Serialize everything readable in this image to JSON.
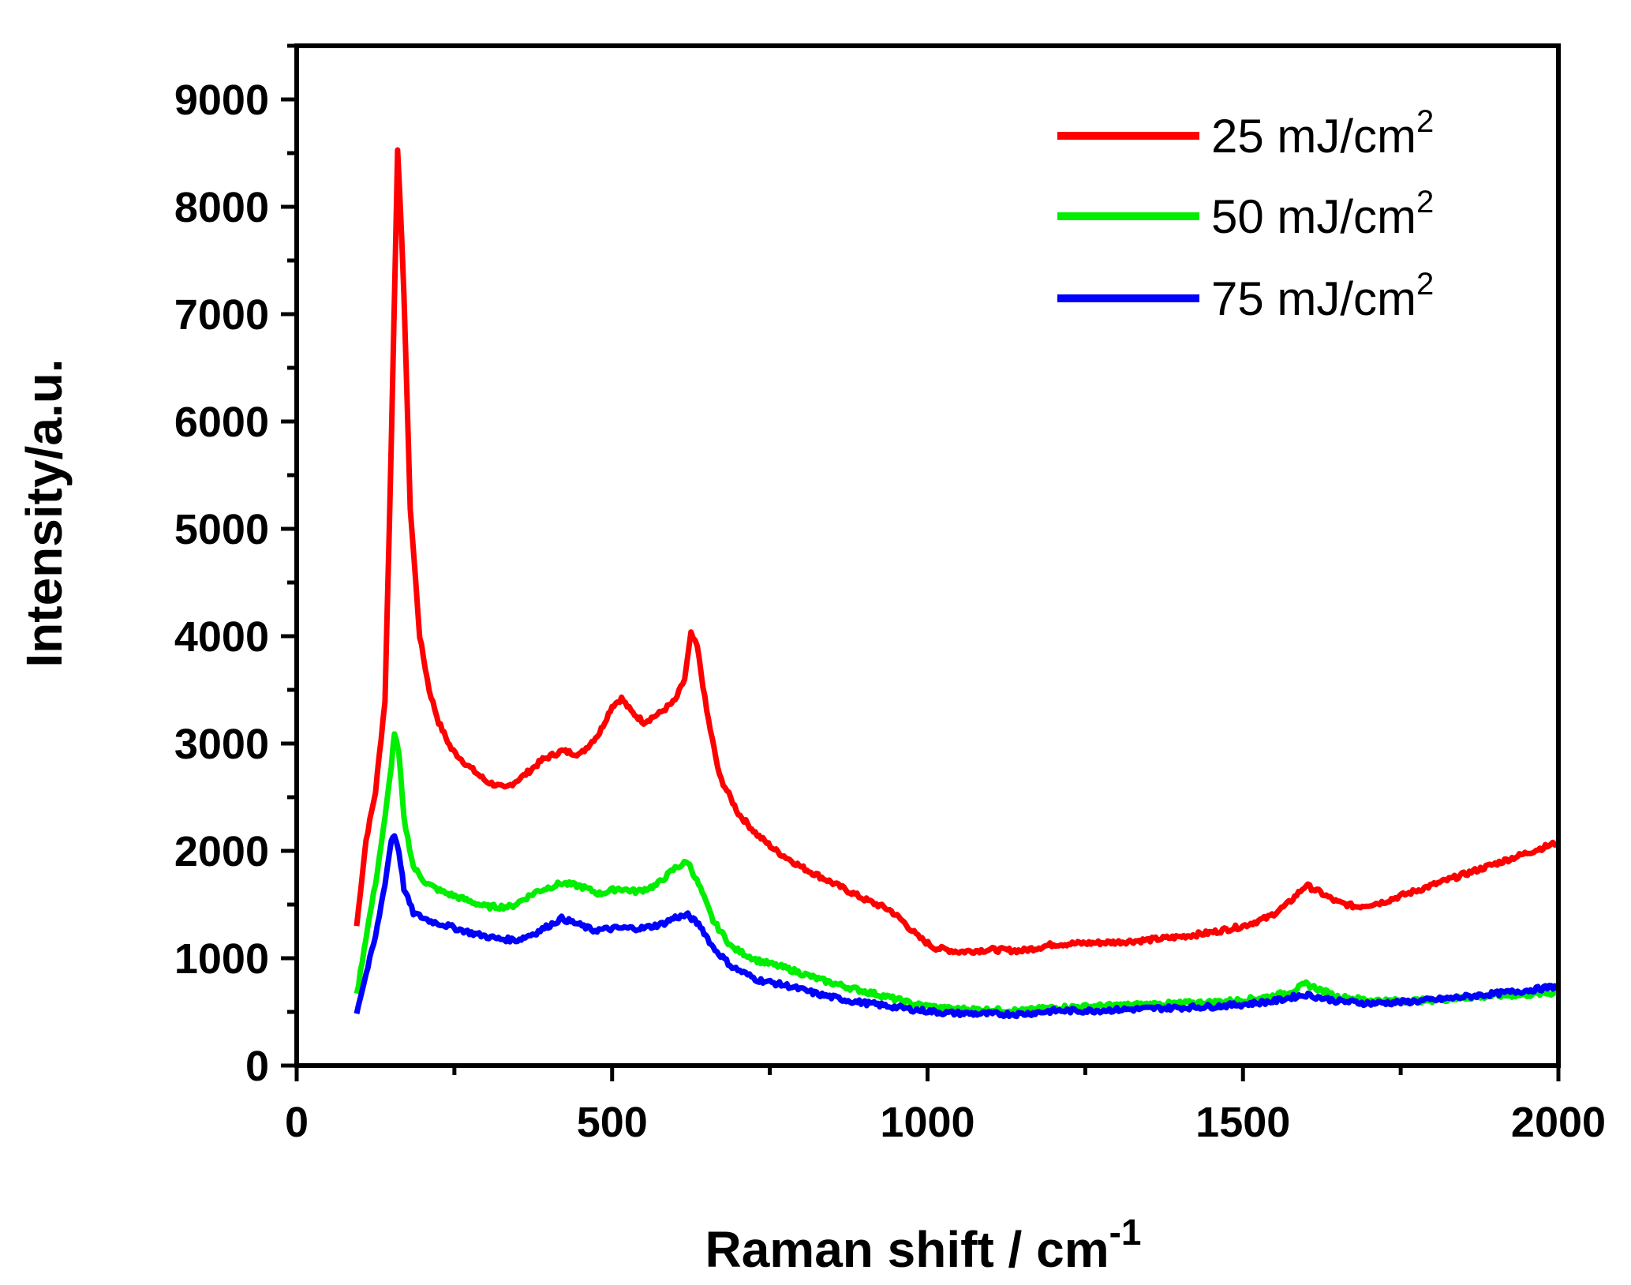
{
  "chart_data": {
    "type": "line",
    "title": "",
    "xlabel": "Raman shift / cm",
    "xlabel_sup": "-1",
    "ylabel": "Intensity/a.u.",
    "xlim": [
      0,
      2000
    ],
    "ylim": [
      0,
      9500
    ],
    "x_ticks": [
      0,
      500,
      1000,
      1500,
      2000
    ],
    "y_ticks": [
      0,
      1000,
      2000,
      3000,
      4000,
      5000,
      6000,
      7000,
      8000,
      9000
    ],
    "grid": false,
    "legend_position": "top-right",
    "series": [
      {
        "name": "25 mJ/cm",
        "name_sup": "2",
        "color": "#ff0000",
        "points": [
          [
            95,
            1300
          ],
          [
            110,
            2100
          ],
          [
            125,
            2550
          ],
          [
            140,
            3400
          ],
          [
            150,
            5800
          ],
          [
            160,
            8550
          ],
          [
            170,
            7200
          ],
          [
            180,
            5200
          ],
          [
            195,
            4000
          ],
          [
            210,
            3500
          ],
          [
            225,
            3200
          ],
          [
            245,
            2950
          ],
          [
            270,
            2800
          ],
          [
            300,
            2650
          ],
          [
            330,
            2580
          ],
          [
            360,
            2700
          ],
          [
            390,
            2850
          ],
          [
            420,
            2930
          ],
          [
            450,
            2900
          ],
          [
            480,
            3100
          ],
          [
            500,
            3350
          ],
          [
            515,
            3420
          ],
          [
            530,
            3300
          ],
          [
            550,
            3200
          ],
          [
            575,
            3280
          ],
          [
            600,
            3400
          ],
          [
            615,
            3600
          ],
          [
            625,
            4020
          ],
          [
            635,
            3900
          ],
          [
            650,
            3300
          ],
          [
            670,
            2700
          ],
          [
            700,
            2350
          ],
          [
            730,
            2150
          ],
          [
            760,
            2000
          ],
          [
            800,
            1850
          ],
          [
            850,
            1700
          ],
          [
            900,
            1550
          ],
          [
            940,
            1450
          ],
          [
            960,
            1350
          ],
          [
            985,
            1200
          ],
          [
            1010,
            1100
          ],
          [
            1050,
            1060
          ],
          [
            1100,
            1080
          ],
          [
            1150,
            1070
          ],
          [
            1200,
            1130
          ],
          [
            1250,
            1140
          ],
          [
            1300,
            1150
          ],
          [
            1350,
            1170
          ],
          [
            1400,
            1200
          ],
          [
            1450,
            1240
          ],
          [
            1500,
            1300
          ],
          [
            1540,
            1380
          ],
          [
            1570,
            1500
          ],
          [
            1600,
            1680
          ],
          [
            1620,
            1620
          ],
          [
            1650,
            1520
          ],
          [
            1680,
            1480
          ],
          [
            1720,
            1520
          ],
          [
            1760,
            1600
          ],
          [
            1800,
            1680
          ],
          [
            1850,
            1780
          ],
          [
            1900,
            1880
          ],
          [
            1950,
            1980
          ],
          [
            2000,
            2080
          ]
        ]
      },
      {
        "name": "50 mJ/cm",
        "name_sup": "2",
        "color": "#00ee00",
        "points": [
          [
            95,
            650
          ],
          [
            110,
            1200
          ],
          [
            125,
            1700
          ],
          [
            140,
            2300
          ],
          [
            150,
            2800
          ],
          [
            155,
            3100
          ],
          [
            162,
            2900
          ],
          [
            170,
            2300
          ],
          [
            185,
            1850
          ],
          [
            205,
            1700
          ],
          [
            230,
            1620
          ],
          [
            260,
            1560
          ],
          [
            300,
            1480
          ],
          [
            340,
            1480
          ],
          [
            380,
            1620
          ],
          [
            420,
            1700
          ],
          [
            450,
            1670
          ],
          [
            480,
            1600
          ],
          [
            510,
            1650
          ],
          [
            540,
            1620
          ],
          [
            570,
            1680
          ],
          [
            600,
            1840
          ],
          [
            620,
            1900
          ],
          [
            640,
            1650
          ],
          [
            660,
            1350
          ],
          [
            690,
            1100
          ],
          [
            730,
            980
          ],
          [
            780,
            900
          ],
          [
            830,
            800
          ],
          [
            880,
            720
          ],
          [
            930,
            650
          ],
          [
            980,
            570
          ],
          [
            1030,
            530
          ],
          [
            1100,
            520
          ],
          [
            1150,
            510
          ],
          [
            1200,
            540
          ],
          [
            1250,
            550
          ],
          [
            1300,
            560
          ],
          [
            1350,
            570
          ],
          [
            1400,
            580
          ],
          [
            1450,
            590
          ],
          [
            1500,
            610
          ],
          [
            1550,
            650
          ],
          [
            1580,
            700
          ],
          [
            1600,
            760
          ],
          [
            1625,
            700
          ],
          [
            1650,
            640
          ],
          [
            1700,
            610
          ],
          [
            1750,
            600
          ],
          [
            1800,
            610
          ],
          [
            1850,
            630
          ],
          [
            1900,
            650
          ],
          [
            1950,
            660
          ],
          [
            2000,
            680
          ]
        ]
      },
      {
        "name": "75 mJ/cm",
        "name_sup": "2",
        "color": "#0000ff",
        "points": [
          [
            95,
            500
          ],
          [
            110,
            850
          ],
          [
            125,
            1200
          ],
          [
            140,
            1700
          ],
          [
            150,
            2100
          ],
          [
            155,
            2150
          ],
          [
            162,
            2000
          ],
          [
            170,
            1650
          ],
          [
            185,
            1420
          ],
          [
            210,
            1350
          ],
          [
            240,
            1300
          ],
          [
            280,
            1230
          ],
          [
            320,
            1180
          ],
          [
            350,
            1170
          ],
          [
            380,
            1240
          ],
          [
            420,
            1370
          ],
          [
            440,
            1330
          ],
          [
            470,
            1260
          ],
          [
            510,
            1280
          ],
          [
            550,
            1280
          ],
          [
            580,
            1320
          ],
          [
            600,
            1380
          ],
          [
            620,
            1400
          ],
          [
            640,
            1300
          ],
          [
            660,
            1100
          ],
          [
            690,
            920
          ],
          [
            730,
            800
          ],
          [
            780,
            740
          ],
          [
            830,
            660
          ],
          [
            880,
            600
          ],
          [
            930,
            560
          ],
          [
            980,
            520
          ],
          [
            1030,
            490
          ],
          [
            1100,
            480
          ],
          [
            1150,
            480
          ],
          [
            1200,
            510
          ],
          [
            1250,
            510
          ],
          [
            1300,
            520
          ],
          [
            1350,
            530
          ],
          [
            1400,
            540
          ],
          [
            1450,
            550
          ],
          [
            1500,
            570
          ],
          [
            1550,
            600
          ],
          [
            1580,
            640
          ],
          [
            1600,
            660
          ],
          [
            1625,
            630
          ],
          [
            1650,
            600
          ],
          [
            1700,
            580
          ],
          [
            1750,
            590
          ],
          [
            1800,
            610
          ],
          [
            1850,
            640
          ],
          [
            1900,
            670
          ],
          [
            1950,
            700
          ],
          [
            2000,
            740
          ]
        ]
      }
    ]
  }
}
